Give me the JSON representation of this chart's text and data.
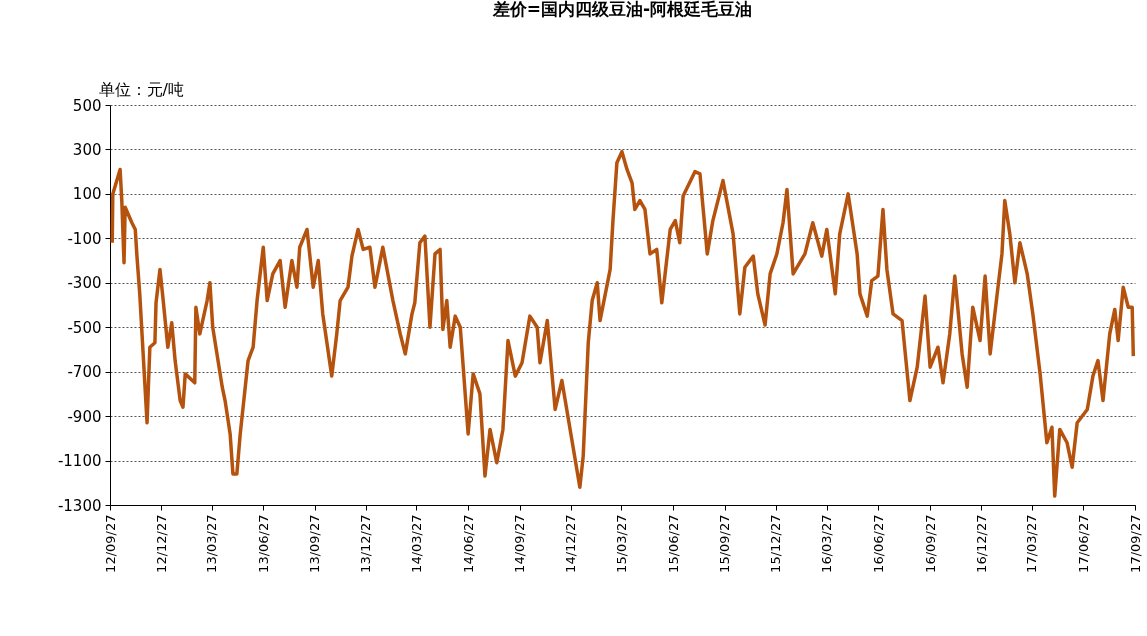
{
  "chart_data": {
    "type": "line",
    "title": "差价=国内四级豆油-阿根廷毛豆油",
    "ylabel": "单位：元/吨",
    "grid": "y",
    "line_style": "solid",
    "marker": "none",
    "xlim": [
      "2012-09-27",
      "2017-09-27"
    ],
    "xticks": [
      {
        "value": "2012-09-27",
        "label": "12/09/27"
      },
      {
        "value": "2012-12-27",
        "label": "12/12/27"
      },
      {
        "value": "2013-03-27",
        "label": "13/03/27"
      },
      {
        "value": "2013-06-27",
        "label": "13/06/27"
      },
      {
        "value": "2013-09-27",
        "label": "13/09/27"
      },
      {
        "value": "2013-12-27",
        "label": "13/12/27"
      },
      {
        "value": "2014-03-27",
        "label": "14/03/27"
      },
      {
        "value": "2014-06-27",
        "label": "14/06/27"
      },
      {
        "value": "2014-09-27",
        "label": "14/09/27"
      },
      {
        "value": "2014-12-27",
        "label": "14/12/27"
      },
      {
        "value": "2015-03-27",
        "label": "15/03/27"
      },
      {
        "value": "2015-06-27",
        "label": "15/06/27"
      },
      {
        "value": "2015-09-27",
        "label": "15/09/27"
      },
      {
        "value": "2015-12-27",
        "label": "15/12/27"
      },
      {
        "value": "2016-03-27",
        "label": "16/03/27"
      },
      {
        "value": "2016-06-27",
        "label": "16/06/27"
      },
      {
        "value": "2016-09-27",
        "label": "16/09/27"
      },
      {
        "value": "2016-12-27",
        "label": "16/12/27"
      },
      {
        "value": "2017-03-27",
        "label": "17/03/27"
      },
      {
        "value": "2017-06-27",
        "label": "17/06/27"
      },
      {
        "value": "2017-09-27",
        "label": "17/09/27"
      }
    ],
    "ylim": [
      -1300,
      500
    ],
    "yticks": [
      -1300,
      -1100,
      -900,
      -700,
      -500,
      -300,
      -100,
      100,
      300,
      500
    ],
    "series": [
      {
        "color": "#b5530e",
        "x": [
          "2012-10-01",
          "2012-10-02",
          "2012-10-15",
          "2012-10-18",
          "2012-10-22",
          "2012-10-24",
          "2012-11-05",
          "2012-11-11",
          "2012-11-14",
          "2012-11-19",
          "2012-12-02",
          "2012-12-07",
          "2012-12-16",
          "2012-12-18",
          "2012-12-25",
          "2012-12-30",
          "2013-01-08",
          "2013-01-15",
          "2013-01-21",
          "2013-01-30",
          "2013-02-04",
          "2013-02-08",
          "2013-02-25",
          "2013-02-27",
          "2013-03-06",
          "2013-03-19",
          "2013-03-24",
          "2013-03-29",
          "2013-04-15",
          "2013-04-20",
          "2013-04-29",
          "2013-05-04",
          "2013-05-11",
          "2013-05-17",
          "2013-05-31",
          "2013-06-09",
          "2013-06-16",
          "2013-06-27",
          "2013-07-04",
          "2013-07-14",
          "2013-07-27",
          "2013-08-05",
          "2013-08-17",
          "2013-08-26",
          "2013-08-31",
          "2013-09-13",
          "2013-09-24",
          "2013-10-03",
          "2013-10-11",
          "2013-10-27",
          "2013-11-05",
          "2013-11-11",
          "2013-11-25",
          "2013-12-02",
          "2013-12-13",
          "2013-12-22",
          "2014-01-03",
          "2014-01-12",
          "2014-01-26",
          "2014-02-13",
          "2014-02-26",
          "2014-03-07",
          "2014-03-19",
          "2014-03-24",
          "2014-04-02",
          "2014-04-11",
          "2014-04-20",
          "2014-04-29",
          "2014-05-08",
          "2014-05-13",
          "2014-05-20",
          "2014-05-26",
          "2014-06-04",
          "2014-06-13",
          "2014-06-27",
          "2014-07-06",
          "2014-07-18",
          "2014-07-27",
          "2014-08-05",
          "2014-08-17",
          "2014-08-28",
          "2014-09-06",
          "2014-09-19",
          "2014-10-01",
          "2014-10-15",
          "2014-10-28",
          "2014-11-02",
          "2014-11-15",
          "2014-11-29",
          "2014-12-11",
          "2014-12-29",
          "2015-01-12",
          "2015-01-18",
          "2015-01-27",
          "2015-02-03",
          "2015-02-12",
          "2015-02-17",
          "2015-03-07",
          "2015-03-12",
          "2015-03-19",
          "2015-03-28",
          "2015-04-06",
          "2015-04-15",
          "2015-04-20",
          "2015-04-29",
          "2015-05-08",
          "2015-05-17",
          "2015-05-29",
          "2015-06-07",
          "2015-06-22",
          "2015-07-01",
          "2015-07-09",
          "2015-07-15",
          "2015-08-05",
          "2015-08-14",
          "2015-08-27",
          "2015-09-06",
          "2015-09-24",
          "2015-10-12",
          "2015-10-24",
          "2015-11-02",
          "2015-11-17",
          "2015-11-25",
          "2015-12-08",
          "2015-12-17",
          "2015-12-29",
          "2016-01-09",
          "2016-01-16",
          "2016-01-27",
          "2016-02-17",
          "2016-03-02",
          "2016-03-18",
          "2016-03-27",
          "2016-04-11",
          "2016-04-19",
          "2016-05-04",
          "2016-05-20",
          "2016-05-25",
          "2016-06-07",
          "2016-06-15",
          "2016-06-26",
          "2016-07-05",
          "2016-07-12",
          "2016-07-23",
          "2016-08-08",
          "2016-08-22",
          "2016-09-04",
          "2016-09-18",
          "2016-09-27",
          "2016-10-11",
          "2016-10-20",
          "2016-11-01",
          "2016-11-10",
          "2016-11-23",
          "2016-12-02",
          "2016-12-12",
          "2016-12-25",
          "2017-01-03",
          "2017-01-12",
          "2017-01-24",
          "2017-02-02",
          "2017-02-07",
          "2017-02-16",
          "2017-02-25",
          "2017-03-06",
          "2017-03-19",
          "2017-03-29",
          "2017-04-11",
          "2017-04-23",
          "2017-05-02",
          "2017-05-07",
          "2017-05-16",
          "2017-05-29",
          "2017-06-07",
          "2017-06-16",
          "2017-07-04",
          "2017-07-14",
          "2017-07-23",
          "2017-08-01",
          "2017-08-13",
          "2017-08-22",
          "2017-08-28",
          "2017-09-06",
          "2017-09-15",
          "2017-09-22",
          "2017-09-24"
        ],
        "values": [
          -120,
          100,
          210,
          70,
          -210,
          40,
          -30,
          -60,
          -180,
          -350,
          -930,
          -590,
          -570,
          -390,
          -240,
          -360,
          -590,
          -480,
          -650,
          -830,
          -860,
          -710,
          -750,
          -410,
          -530,
          -380,
          -300,
          -500,
          -770,
          -830,
          -980,
          -1160,
          -1160,
          -980,
          -650,
          -590,
          -380,
          -140,
          -380,
          -260,
          -200,
          -410,
          -200,
          -320,
          -140,
          -60,
          -320,
          -200,
          -440,
          -720,
          -530,
          -380,
          -320,
          -180,
          -60,
          -150,
          -140,
          -320,
          -140,
          -380,
          -530,
          -620,
          -440,
          -390,
          -120,
          -90,
          -500,
          -170,
          -150,
          -510,
          -380,
          -590,
          -450,
          -500,
          -980,
          -710,
          -800,
          -1170,
          -960,
          -1110,
          -960,
          -560,
          -720,
          -660,
          -450,
          -500,
          -660,
          -470,
          -870,
          -740,
          -1010,
          -1220,
          -1080,
          -570,
          -380,
          -300,
          -470,
          -240,
          -20,
          240,
          290,
          210,
          150,
          30,
          70,
          30,
          -170,
          -150,
          -390,
          -60,
          -20,
          -120,
          90,
          200,
          190,
          -170,
          -20,
          160,
          -80,
          -440,
          -230,
          -180,
          -350,
          -490,
          -260,
          -170,
          -30,
          120,
          -260,
          -170,
          -30,
          -180,
          -60,
          -350,
          -80,
          100,
          -170,
          -350,
          -450,
          -290,
          -270,
          30,
          -240,
          -440,
          -470,
          -830,
          -680,
          -360,
          -680,
          -590,
          -750,
          -530,
          -270,
          -620,
          -770,
          -410,
          -560,
          -270,
          -620,
          -360,
          -170,
          70,
          -80,
          -300,
          -120,
          -260,
          -440,
          -710,
          -1020,
          -950,
          -1260,
          -960,
          -1020,
          -1130,
          -930,
          -870,
          -720,
          -650,
          -830,
          -530,
          -420,
          -560,
          -320,
          -410,
          -410,
          -630
        ]
      }
    ]
  }
}
